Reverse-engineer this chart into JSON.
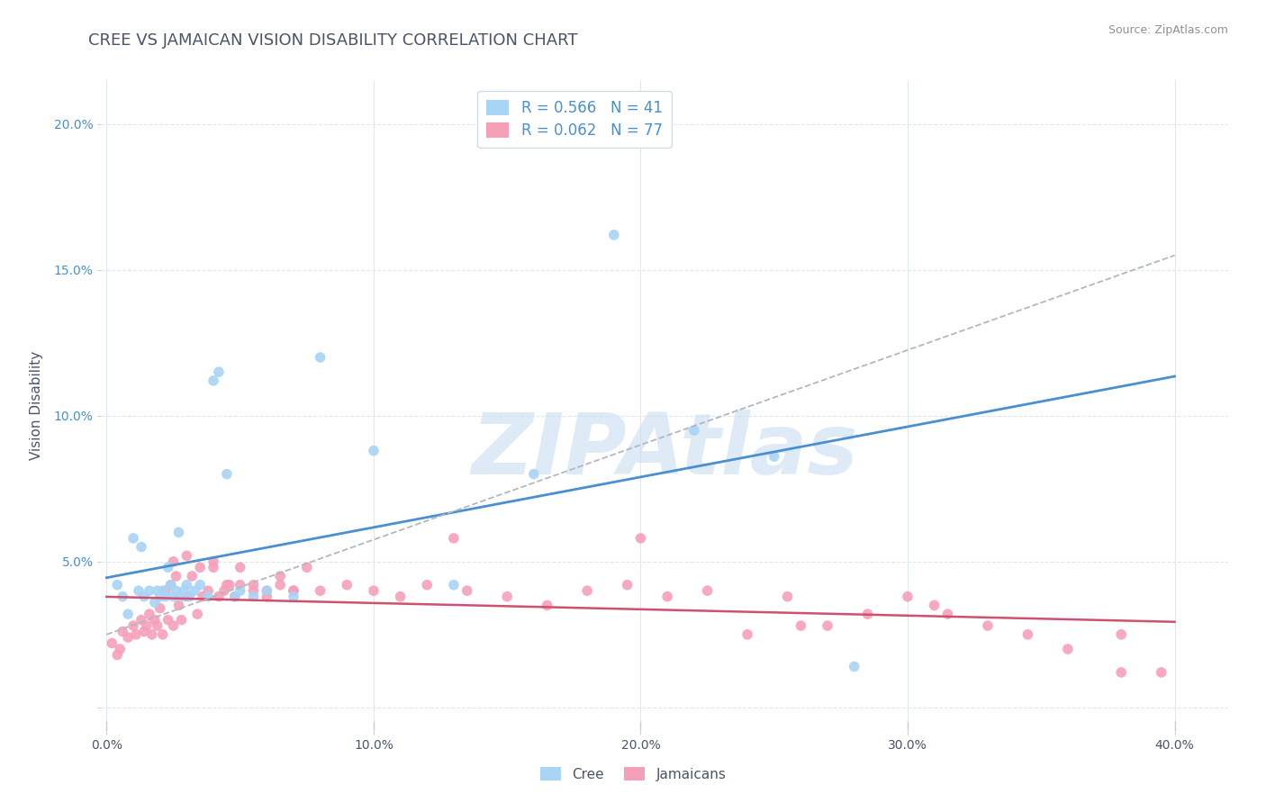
{
  "title": "CREE VS JAMAICAN VISION DISABILITY CORRELATION CHART",
  "source": "Source: ZipAtlas.com",
  "ylabel": "Vision Disability",
  "xlim": [
    -0.002,
    0.42
  ],
  "ylim": [
    -0.008,
    0.215
  ],
  "xticks": [
    0.0,
    0.1,
    0.2,
    0.3,
    0.4
  ],
  "xticklabels": [
    "0.0%",
    "",
    "20.0%",
    "",
    "40.0%"
  ],
  "yticks": [
    0.0,
    0.05,
    0.1,
    0.15,
    0.2
  ],
  "yticklabels": [
    "",
    "5.0%",
    "10.0%",
    "15.0%",
    "20.0%"
  ],
  "xtick_all": [
    0.0,
    0.1,
    0.2,
    0.3,
    0.4
  ],
  "xticklabels_all": [
    "0.0%",
    "10.0%",
    "20.0%",
    "30.0%",
    "40.0%"
  ],
  "cree_color": "#a8d4f5",
  "jamaican_color": "#f5a0b8",
  "cree_R": 0.566,
  "cree_N": 41,
  "jamaican_R": 0.062,
  "jamaican_N": 77,
  "legend_label_cree": "Cree",
  "legend_label_jamaican": "Jamaicans",
  "watermark": "ZIPAtlas",
  "watermark_color": "#c8ddf0",
  "background_color": "#ffffff",
  "grid_color": "#dde8f2",
  "title_color": "#4a5568",
  "axis_tick_color": "#4a90d0",
  "source_color": "#909090",
  "cree_line_color": "#4a90d0",
  "jamaican_line_color": "#d05070",
  "dash_line_color": "#b0b8c0",
  "legend_text_color": "#4a90d0",
  "cree_scatter_x": [
    0.004,
    0.006,
    0.008,
    0.01,
    0.012,
    0.013,
    0.014,
    0.016,
    0.018,
    0.019,
    0.02,
    0.021,
    0.022,
    0.023,
    0.024,
    0.025,
    0.026,
    0.027,
    0.028,
    0.029,
    0.03,
    0.031,
    0.033,
    0.035,
    0.038,
    0.04,
    0.042,
    0.045,
    0.048,
    0.05,
    0.055,
    0.06,
    0.07,
    0.08,
    0.1,
    0.13,
    0.16,
    0.19,
    0.22,
    0.25,
    0.28
  ],
  "cree_scatter_y": [
    0.042,
    0.038,
    0.032,
    0.058,
    0.04,
    0.055,
    0.038,
    0.04,
    0.036,
    0.04,
    0.038,
    0.04,
    0.038,
    0.048,
    0.042,
    0.038,
    0.04,
    0.06,
    0.038,
    0.04,
    0.042,
    0.038,
    0.04,
    0.042,
    0.038,
    0.112,
    0.115,
    0.08,
    0.038,
    0.04,
    0.038,
    0.04,
    0.038,
    0.12,
    0.088,
    0.042,
    0.08,
    0.162,
    0.095,
    0.086,
    0.014
  ],
  "jamaican_scatter_x": [
    0.002,
    0.004,
    0.005,
    0.006,
    0.008,
    0.01,
    0.011,
    0.013,
    0.014,
    0.015,
    0.016,
    0.017,
    0.018,
    0.019,
    0.02,
    0.021,
    0.022,
    0.023,
    0.024,
    0.025,
    0.026,
    0.027,
    0.028,
    0.03,
    0.032,
    0.034,
    0.036,
    0.038,
    0.04,
    0.042,
    0.044,
    0.046,
    0.048,
    0.05,
    0.055,
    0.06,
    0.065,
    0.07,
    0.075,
    0.08,
    0.09,
    0.1,
    0.11,
    0.12,
    0.135,
    0.15,
    0.165,
    0.18,
    0.195,
    0.21,
    0.225,
    0.24,
    0.255,
    0.27,
    0.285,
    0.3,
    0.315,
    0.33,
    0.345,
    0.36,
    0.38,
    0.395,
    0.025,
    0.03,
    0.035,
    0.04,
    0.045,
    0.05,
    0.055,
    0.06,
    0.065,
    0.07,
    0.13,
    0.2,
    0.26,
    0.31,
    0.38
  ],
  "jamaican_scatter_y": [
    0.022,
    0.018,
    0.02,
    0.026,
    0.024,
    0.028,
    0.025,
    0.03,
    0.026,
    0.028,
    0.032,
    0.025,
    0.03,
    0.028,
    0.034,
    0.025,
    0.04,
    0.03,
    0.042,
    0.028,
    0.045,
    0.035,
    0.03,
    0.038,
    0.045,
    0.032,
    0.038,
    0.04,
    0.048,
    0.038,
    0.04,
    0.042,
    0.038,
    0.042,
    0.04,
    0.038,
    0.045,
    0.04,
    0.048,
    0.04,
    0.042,
    0.04,
    0.038,
    0.042,
    0.04,
    0.038,
    0.035,
    0.04,
    0.042,
    0.038,
    0.04,
    0.025,
    0.038,
    0.028,
    0.032,
    0.038,
    0.032,
    0.028,
    0.025,
    0.02,
    0.025,
    0.012,
    0.05,
    0.052,
    0.048,
    0.05,
    0.042,
    0.048,
    0.042,
    0.04,
    0.042,
    0.04,
    0.058,
    0.058,
    0.028,
    0.035,
    0.012
  ]
}
